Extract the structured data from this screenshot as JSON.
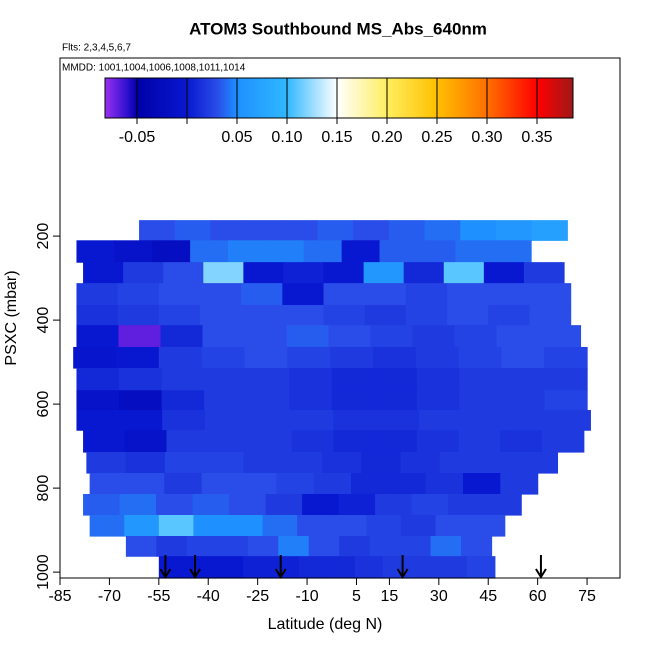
{
  "chart_data": {
    "type": "heatmap",
    "title": "ATOM3 Southbound MS_Abs_640nm",
    "subtitles": [
      "Flts: 2,3,4,5,6,7",
      "MMDD: 1001,1004,1006,1008,1011,1014"
    ],
    "xlabel": "Latitude (deg N)",
    "ylabel": "PSXC (mbar)",
    "xlim": [
      -85,
      85
    ],
    "xticks": [
      -85,
      -70,
      -55,
      -40,
      -25,
      -10,
      5,
      15,
      30,
      45,
      60,
      75
    ],
    "ylim": [
      -224,
      1014
    ],
    "yticks": [
      200,
      400,
      600,
      800,
      1000
    ],
    "p_edges": [
      162,
      210,
      262,
      312,
      364,
      412,
      464,
      514,
      567,
      614,
      662,
      714,
      764,
      814,
      864,
      914,
      962,
      1014
    ],
    "rows": [
      {
        "lat": [
          -61,
          69
        ],
        "values": [
          0.03,
          0.035,
          0.03,
          0.03,
          0.03,
          0.035,
          0.03,
          0.035,
          0.04,
          0.05,
          0.06,
          0.07
        ]
      },
      {
        "lat": [
          -80,
          58
        ],
        "values": [
          0.0,
          -0.01,
          -0.02,
          0.04,
          0.045,
          0.045,
          0.04,
          0.0,
          0.035,
          0.035,
          0.04,
          0.04
        ]
      },
      {
        "lat": [
          -78,
          68
        ],
        "values": [
          0.0,
          0.02,
          0.03,
          0.12,
          0.0,
          0.005,
          0.0,
          0.06,
          0.01,
          0.11,
          0.0,
          0.02
        ]
      },
      {
        "lat": [
          -80,
          70
        ],
        "values": [
          0.02,
          0.025,
          0.03,
          0.03,
          0.035,
          0.0,
          0.03,
          0.03,
          0.025,
          0.03,
          0.03,
          0.03
        ]
      },
      {
        "lat": [
          -80,
          70
        ],
        "values": [
          0.015,
          0.02,
          0.025,
          0.03,
          0.03,
          0.03,
          0.025,
          0.02,
          0.025,
          0.03,
          0.025,
          0.03
        ]
      },
      {
        "lat": [
          -80,
          73
        ],
        "values": [
          0.0,
          -0.07,
          0.01,
          0.03,
          0.03,
          0.035,
          0.03,
          0.025,
          0.02,
          0.025,
          0.03,
          0.03
        ]
      },
      {
        "lat": [
          -81,
          75
        ],
        "values": [
          -0.005,
          0.0,
          0.02,
          0.025,
          0.03,
          0.025,
          0.02,
          0.015,
          0.02,
          0.025,
          0.03,
          0.025
        ]
      },
      {
        "lat": [
          -80,
          75
        ],
        "values": [
          0.01,
          0.015,
          0.02,
          0.02,
          0.02,
          0.015,
          0.01,
          0.01,
          0.015,
          0.02,
          0.02,
          0.02
        ]
      },
      {
        "lat": [
          -80,
          75
        ],
        "values": [
          -0.01,
          -0.02,
          0.01,
          0.02,
          0.02,
          0.015,
          0.01,
          0.01,
          0.015,
          0.02,
          0.02,
          0.025
        ]
      },
      {
        "lat": [
          -80,
          76
        ],
        "values": [
          0.0,
          0.0,
          0.015,
          0.02,
          0.02,
          0.02,
          0.015,
          0.015,
          0.02,
          0.02,
          0.02,
          0.02
        ]
      },
      {
        "lat": [
          -78,
          74
        ],
        "values": [
          0.0,
          -0.01,
          0.02,
          0.02,
          0.02,
          0.015,
          0.01,
          0.01,
          0.015,
          0.02,
          0.015,
          0.02
        ]
      },
      {
        "lat": [
          -77,
          66
        ],
        "values": [
          0.02,
          0.015,
          0.025,
          0.025,
          0.02,
          0.02,
          0.015,
          0.01,
          0.015,
          0.02,
          0.02,
          0.02
        ]
      },
      {
        "lat": [
          -76,
          60
        ],
        "values": [
          0.03,
          0.03,
          0.02,
          0.03,
          0.03,
          0.025,
          0.02,
          0.01,
          0.01,
          0.015,
          0.0,
          0.02
        ]
      },
      {
        "lat": [
          -78,
          55
        ],
        "values": [
          0.035,
          0.04,
          0.03,
          0.035,
          0.03,
          0.02,
          0.0,
          0.005,
          0.02,
          0.025,
          0.02,
          0.02
        ]
      },
      {
        "lat": [
          -76,
          50
        ],
        "values": [
          0.04,
          0.06,
          0.11,
          0.05,
          0.05,
          0.04,
          0.03,
          0.03,
          0.025,
          0.02,
          0.03,
          0.03
        ]
      },
      {
        "lat": [
          -65,
          46
        ],
        "values": [
          0.03,
          0.02,
          0.025,
          0.025,
          0.03,
          0.045,
          0.03,
          0.02,
          0.025,
          0.025,
          0.04,
          0.03
        ]
      },
      {
        "lat": [
          -55,
          47
        ],
        "values": [
          0.0,
          0.0,
          0.0,
          0.005,
          0.005,
          0.01,
          0.01,
          0.015,
          0.02,
          0.02,
          0.02,
          0.025
        ]
      }
    ],
    "colorbar": {
      "lim": [
        -0.082,
        0.386
      ],
      "ticks": [
        {
          "value": -0.05,
          "label": "-0.05"
        },
        {
          "value": 0,
          "label": null
        },
        {
          "value": 0.05,
          "label": "0.05"
        },
        {
          "value": 0.1,
          "label": "0.10"
        },
        {
          "value": 0.15,
          "label": "0.15"
        },
        {
          "value": 0.2,
          "label": "0.20"
        },
        {
          "value": 0.25,
          "label": "0.25"
        },
        {
          "value": 0.3,
          "label": "0.30"
        },
        {
          "value": 0.35,
          "label": "0.35"
        }
      ],
      "stops": [
        {
          "value": -0.082,
          "color": "#9a30f0"
        },
        {
          "value": -0.06,
          "color": "#3010d0"
        },
        {
          "value": -0.05,
          "color": "#0000a8"
        },
        {
          "value": 0,
          "color": "#0818d0"
        },
        {
          "value": 0.03,
          "color": "#2a4ce8"
        },
        {
          "value": 0.05,
          "color": "#1e90ff"
        },
        {
          "value": 0.1,
          "color": "#30b8ff"
        },
        {
          "value": 0.15,
          "color": "#ffffff"
        },
        {
          "value": 0.2,
          "color": "#ffee60"
        },
        {
          "value": 0.25,
          "color": "#ffc000"
        },
        {
          "value": 0.3,
          "color": "#ff7000"
        },
        {
          "value": 0.35,
          "color": "#ff0000"
        },
        {
          "value": 0.386,
          "color": "#a01818"
        }
      ]
    },
    "arrows": [
      -53,
      -44,
      -18,
      19,
      61
    ]
  }
}
